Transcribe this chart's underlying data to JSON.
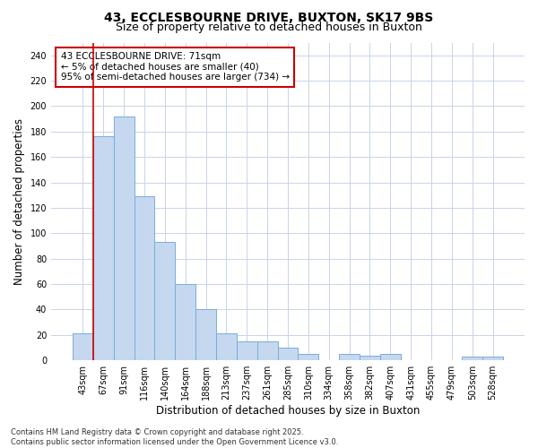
{
  "title_line1": "43, ECCLESBOURNE DRIVE, BUXTON, SK17 9BS",
  "title_line2": "Size of property relative to detached houses in Buxton",
  "xlabel": "Distribution of detached houses by size in Buxton",
  "ylabel": "Number of detached properties",
  "categories": [
    "43sqm",
    "67sqm",
    "91sqm",
    "116sqm",
    "140sqm",
    "164sqm",
    "188sqm",
    "213sqm",
    "237sqm",
    "261sqm",
    "285sqm",
    "310sqm",
    "334sqm",
    "358sqm",
    "382sqm",
    "407sqm",
    "431sqm",
    "455sqm",
    "479sqm",
    "503sqm",
    "528sqm"
  ],
  "values": [
    21,
    176,
    192,
    129,
    93,
    60,
    40,
    21,
    15,
    15,
    10,
    5,
    0,
    5,
    4,
    5,
    0,
    0,
    0,
    3,
    3
  ],
  "bar_color": "#c5d8f0",
  "bar_edge_color": "#7aadda",
  "vline_x": 0.5,
  "vline_color": "#cc0000",
  "annotation_title": "43 ECCLESBOURNE DRIVE: 71sqm",
  "annotation_line1": "← 5% of detached houses are smaller (40)",
  "annotation_line2": "95% of semi-detached houses are larger (734) →",
  "annotation_box_color": "#cc0000",
  "ylim": [
    0,
    250
  ],
  "yticks": [
    0,
    20,
    40,
    60,
    80,
    100,
    120,
    140,
    160,
    180,
    200,
    220,
    240
  ],
  "grid_color": "#c8d4e8",
  "bg_color": "#ffffff",
  "plot_bg_color": "#ffffff",
  "footnote": "Contains HM Land Registry data © Crown copyright and database right 2025.\nContains public sector information licensed under the Open Government Licence v3.0.",
  "title_fontsize": 10,
  "subtitle_fontsize": 9,
  "axis_label_fontsize": 8.5,
  "tick_fontsize": 7,
  "annotation_fontsize": 7.5,
  "footnote_fontsize": 6
}
